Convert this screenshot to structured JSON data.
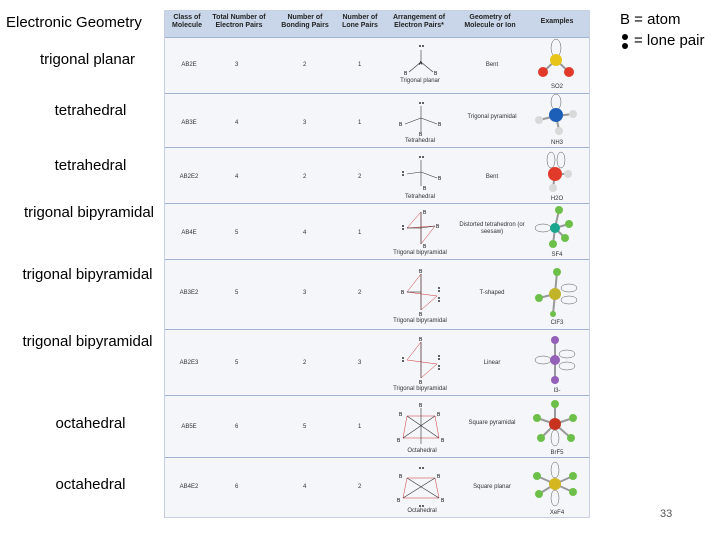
{
  "title": "Electronic Geometry",
  "legend": {
    "atom": "B = atom",
    "lone_pair": "= lone pair"
  },
  "left_labels": [
    "trigonal planar",
    "tetrahedral",
    "tetrahedral",
    "trigonal bipyramidal",
    "trigonal bipyramidal",
    "trigonal bipyramidal",
    "octahedral",
    "octahedral"
  ],
  "table": {
    "headers": [
      "Class of Molecule",
      "Total Number of Electron Pairs",
      "Number of Bonding Pairs",
      "Number of Lone Pairs",
      "Arrangement of Electron Pairs*",
      "Geometry of Molecule or Ion",
      "Examples"
    ],
    "rows": [
      {
        "cls": "AB2E",
        "total": "3",
        "bonding": "2",
        "lone": "1",
        "arrangement": "Trigonal planar",
        "geometry": "Bent",
        "example": "SO2"
      },
      {
        "cls": "AB3E",
        "total": "4",
        "bonding": "3",
        "lone": "1",
        "arrangement": "Tetrahedral",
        "geometry": "Trigonal pyramidal",
        "example": "NH3"
      },
      {
        "cls": "AB2E2",
        "total": "4",
        "bonding": "2",
        "lone": "2",
        "arrangement": "Tetrahedral",
        "geometry": "Bent",
        "example": "H2O"
      },
      {
        "cls": "AB4E",
        "total": "5",
        "bonding": "4",
        "lone": "1",
        "arrangement": "Trigonal bipyramidal",
        "geometry": "Distorted tetrahedron (or seesaw)",
        "example": "SF4"
      },
      {
        "cls": "AB3E2",
        "total": "5",
        "bonding": "3",
        "lone": "2",
        "arrangement": "Trigonal bipyramidal",
        "geometry": "T-shaped",
        "example": "ClF3"
      },
      {
        "cls": "AB2E3",
        "total": "5",
        "bonding": "2",
        "lone": "3",
        "arrangement": "Trigonal bipyramidal",
        "geometry": "Linear",
        "example": "I3-"
      },
      {
        "cls": "AB5E",
        "total": "6",
        "bonding": "5",
        "lone": "1",
        "arrangement": "Octahedral",
        "geometry": "Square pyramidal",
        "example": "BrF5"
      },
      {
        "cls": "AB4E2",
        "total": "6",
        "bonding": "4",
        "lone": "2",
        "arrangement": "Octahedral",
        "geometry": "Square planar",
        "example": "XeF4"
      }
    ]
  },
  "page_number": "33",
  "colors": {
    "header_bg": "#c9d6ea",
    "row_line": "#9fb2d0",
    "sulfur": "#e8c419",
    "oxygen": "#e23a2a",
    "nitrogen": "#1c5fb8",
    "hydrogen": "#d9d9d9",
    "fluorine": "#6cc04a",
    "chlorine": "#c2b42a",
    "iodine": "#9560b8",
    "bromine": "#c8331f",
    "xenon": "#d4b620"
  }
}
